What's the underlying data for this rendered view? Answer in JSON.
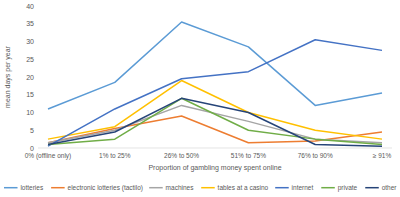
{
  "chart_data": {
    "type": "line",
    "x_label": "Proportion of gambling money spent online",
    "y_label": "mean days per year",
    "categories": [
      "0% (offline only)",
      "1% to 25%",
      "26% to 50%",
      "51% to 75%",
      "76% to 90%",
      "≥ 91%"
    ],
    "ylim": [
      0,
      40
    ],
    "yticks": [
      0,
      5,
      10,
      15,
      20,
      25,
      30,
      35,
      40
    ],
    "grid": false,
    "legend": "bottom",
    "series": [
      {
        "name": "lotteries",
        "color": "#5b9bd5",
        "values": [
          11,
          18.5,
          35.5,
          28.5,
          12,
          15.5
        ]
      },
      {
        "name": "electronic lotteries (tactilo)",
        "color": "#ed7d31",
        "values": [
          1.5,
          5.5,
          9,
          1.5,
          2,
          4.5
        ]
      },
      {
        "name": "machines",
        "color": "#a5a5a5",
        "values": [
          1.5,
          5,
          12,
          7.5,
          2.5,
          1.5
        ]
      },
      {
        "name": "tables at a casino",
        "color": "#ffc000",
        "values": [
          2.5,
          6,
          19,
          10,
          5,
          2.5
        ]
      },
      {
        "name": "internet",
        "color": "#4472c4",
        "values": [
          0.5,
          11,
          19.5,
          21.5,
          30.5,
          27.5
        ]
      },
      {
        "name": "private",
        "color": "#70ad47",
        "values": [
          1,
          2.5,
          14,
          5,
          2.5,
          1
        ]
      },
      {
        "name": "other",
        "color": "#264478",
        "values": [
          1,
          4.5,
          14,
          10,
          1,
          0.5
        ]
      }
    ]
  }
}
